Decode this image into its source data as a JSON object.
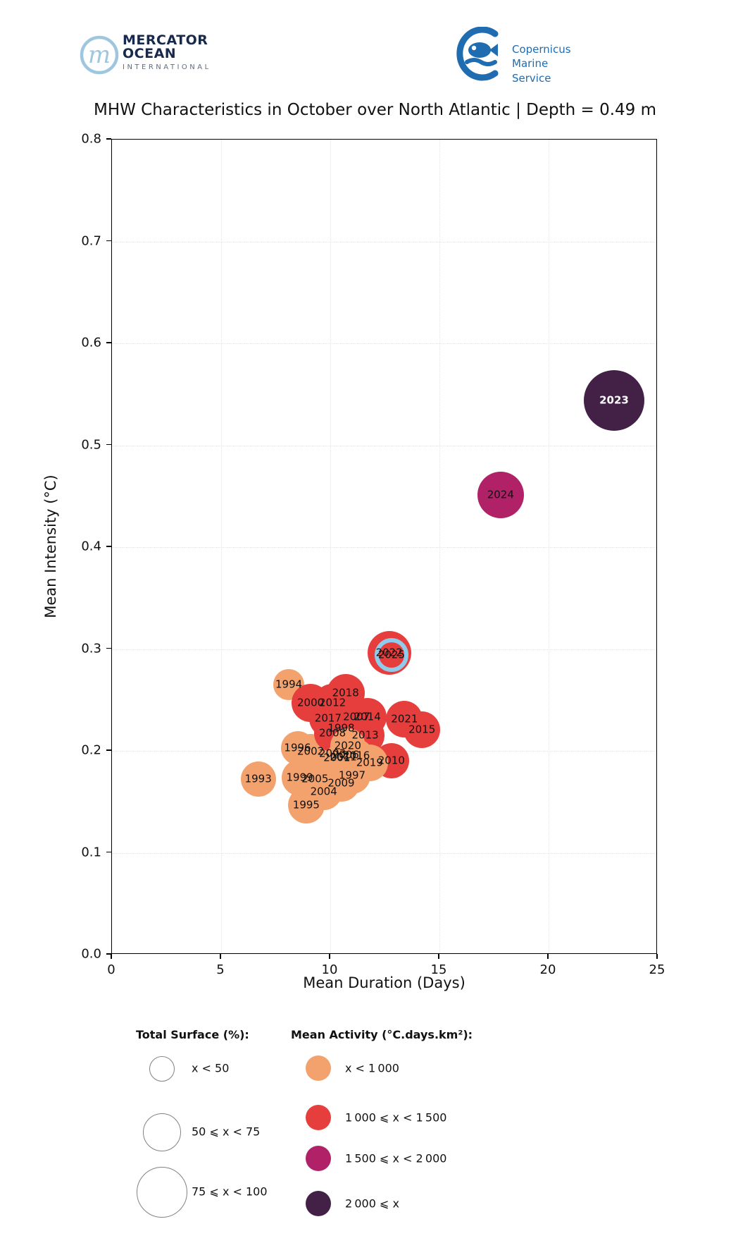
{
  "header": {
    "mercator": {
      "monogram": "m",
      "line1": "MERCATOR",
      "line2": "OCEAN",
      "line3": "INTERNATIONAL"
    },
    "copernicus": {
      "line1": "Copernicus",
      "line2": "Marine Service"
    }
  },
  "title": "MHW Characteristics in October over North Atlantic | Depth = 0.49 m",
  "colors": {
    "orange": "#F3A26D",
    "red": "#E63E3C",
    "magenta": "#B02167",
    "purple": "#432147",
    "ring": "#90CBEB",
    "mercator_navy": "#18294E",
    "copernicus_blue": "#1F6CB0"
  },
  "chart_data": {
    "type": "scatter",
    "title": "MHW Characteristics in October over North Atlantic | Depth = 0.49 m",
    "xlabel": "Mean Duration (Days)",
    "ylabel": "Mean Intensity (°C)",
    "xlim": [
      0,
      25
    ],
    "ylim": [
      0,
      0.8
    ],
    "xticks": [
      0,
      5,
      10,
      15,
      20,
      25
    ],
    "xtick_labels": [
      "0",
      "5",
      "10",
      "15",
      "20",
      "25"
    ],
    "yticks": [
      0.0,
      0.1,
      0.2,
      0.3,
      0.4,
      0.5,
      0.6,
      0.7,
      0.8
    ],
    "ytick_labels": [
      "0.0",
      "0.1",
      "0.2",
      "0.3",
      "0.4",
      "0.5",
      "0.6",
      "0.7",
      "0.8"
    ],
    "grid": true,
    "size_encoding": "Total Surface (%)",
    "color_encoding": "Mean Activity (°C.days.km²)",
    "points": [
      {
        "year": "1993",
        "x": 6.7,
        "y": 0.172,
        "r": 25,
        "c": "orange"
      },
      {
        "year": "1994",
        "x": 8.1,
        "y": 0.265,
        "r": 22,
        "c": "orange"
      },
      {
        "year": "1995",
        "x": 8.9,
        "y": 0.147,
        "r": 26,
        "c": "orange"
      },
      {
        "year": "1996",
        "x": 8.5,
        "y": 0.203,
        "r": 24,
        "c": "orange"
      },
      {
        "year": "1997",
        "x": 11.0,
        "y": 0.176,
        "r": 26,
        "c": "orange"
      },
      {
        "year": "1998",
        "x": 10.5,
        "y": 0.222,
        "r": 26,
        "c": "red"
      },
      {
        "year": "1999",
        "x": 8.6,
        "y": 0.174,
        "r": 26,
        "c": "orange"
      },
      {
        "year": "2000",
        "x": 9.1,
        "y": 0.247,
        "r": 27,
        "c": "red"
      },
      {
        "year": "2001",
        "x": 10.3,
        "y": 0.193,
        "r": 24,
        "c": "orange"
      },
      {
        "year": "2002",
        "x": 9.1,
        "y": 0.199,
        "r": 25,
        "c": "orange"
      },
      {
        "year": "2003",
        "x": 10.1,
        "y": 0.197,
        "r": 24,
        "c": "orange"
      },
      {
        "year": "2004",
        "x": 9.7,
        "y": 0.16,
        "r": 26,
        "c": "orange"
      },
      {
        "year": "2005",
        "x": 9.3,
        "y": 0.172,
        "r": 26,
        "c": "orange"
      },
      {
        "year": "2006",
        "x": 10.7,
        "y": 0.196,
        "r": 25,
        "c": "red"
      },
      {
        "year": "2007",
        "x": 11.2,
        "y": 0.233,
        "r": 27,
        "c": "red"
      },
      {
        "year": "2008",
        "x": 10.1,
        "y": 0.217,
        "r": 26,
        "c": "red"
      },
      {
        "year": "2009",
        "x": 10.5,
        "y": 0.168,
        "r": 26,
        "c": "orange"
      },
      {
        "year": "2010",
        "x": 12.8,
        "y": 0.19,
        "r": 25,
        "c": "red"
      },
      {
        "year": "2011",
        "x": 10.6,
        "y": 0.194,
        "r": 24,
        "c": "orange"
      },
      {
        "year": "2012",
        "x": 10.1,
        "y": 0.247,
        "r": 27,
        "c": "red"
      },
      {
        "year": "2013",
        "x": 11.6,
        "y": 0.215,
        "r": 27,
        "c": "red"
      },
      {
        "year": "2014",
        "x": 11.7,
        "y": 0.233,
        "r": 27,
        "c": "red"
      },
      {
        "year": "2015",
        "x": 14.2,
        "y": 0.221,
        "r": 26,
        "c": "red"
      },
      {
        "year": "2016",
        "x": 11.2,
        "y": 0.195,
        "r": 24,
        "c": "orange"
      },
      {
        "year": "2017",
        "x": 9.9,
        "y": 0.232,
        "r": 27,
        "c": "red"
      },
      {
        "year": "2018",
        "x": 10.7,
        "y": 0.257,
        "r": 27,
        "c": "red"
      },
      {
        "year": "2019",
        "x": 11.8,
        "y": 0.188,
        "r": 26,
        "c": "orange"
      },
      {
        "year": "2020",
        "x": 10.8,
        "y": 0.205,
        "r": 25,
        "c": "orange"
      },
      {
        "year": "2021",
        "x": 13.4,
        "y": 0.231,
        "r": 26,
        "c": "red"
      },
      {
        "year": "2022",
        "x": 12.7,
        "y": 0.296,
        "r": 31,
        "c": "red"
      },
      {
        "year": "2023",
        "x": 23.0,
        "y": 0.544,
        "r": 43,
        "c": "purple",
        "label_style": "white-bold"
      },
      {
        "year": "2024",
        "x": 17.8,
        "y": 0.451,
        "r": 33,
        "c": "magenta"
      },
      {
        "year": "2025",
        "x": 12.8,
        "y": 0.294,
        "r": 24,
        "c": "red",
        "ring": true
      }
    ]
  },
  "legend": {
    "size": {
      "title": "Total Surface (%):",
      "items": [
        {
          "label": "x < 50",
          "r": 17
        },
        {
          "label": "50 ⩽ x < 75",
          "r": 26
        },
        {
          "label": "75 ⩽ x < 100",
          "r": 35
        }
      ]
    },
    "color": {
      "title": "Mean Activity (°C.days.km²):",
      "items": [
        {
          "label": "x < 1 000",
          "c": "orange"
        },
        {
          "label": "1 000 ⩽ x < 1 500",
          "c": "red"
        },
        {
          "label": "1 500 ⩽ x < 2 000",
          "c": "magenta"
        },
        {
          "label": "2 000 ⩽ x",
          "c": "purple"
        }
      ]
    }
  }
}
